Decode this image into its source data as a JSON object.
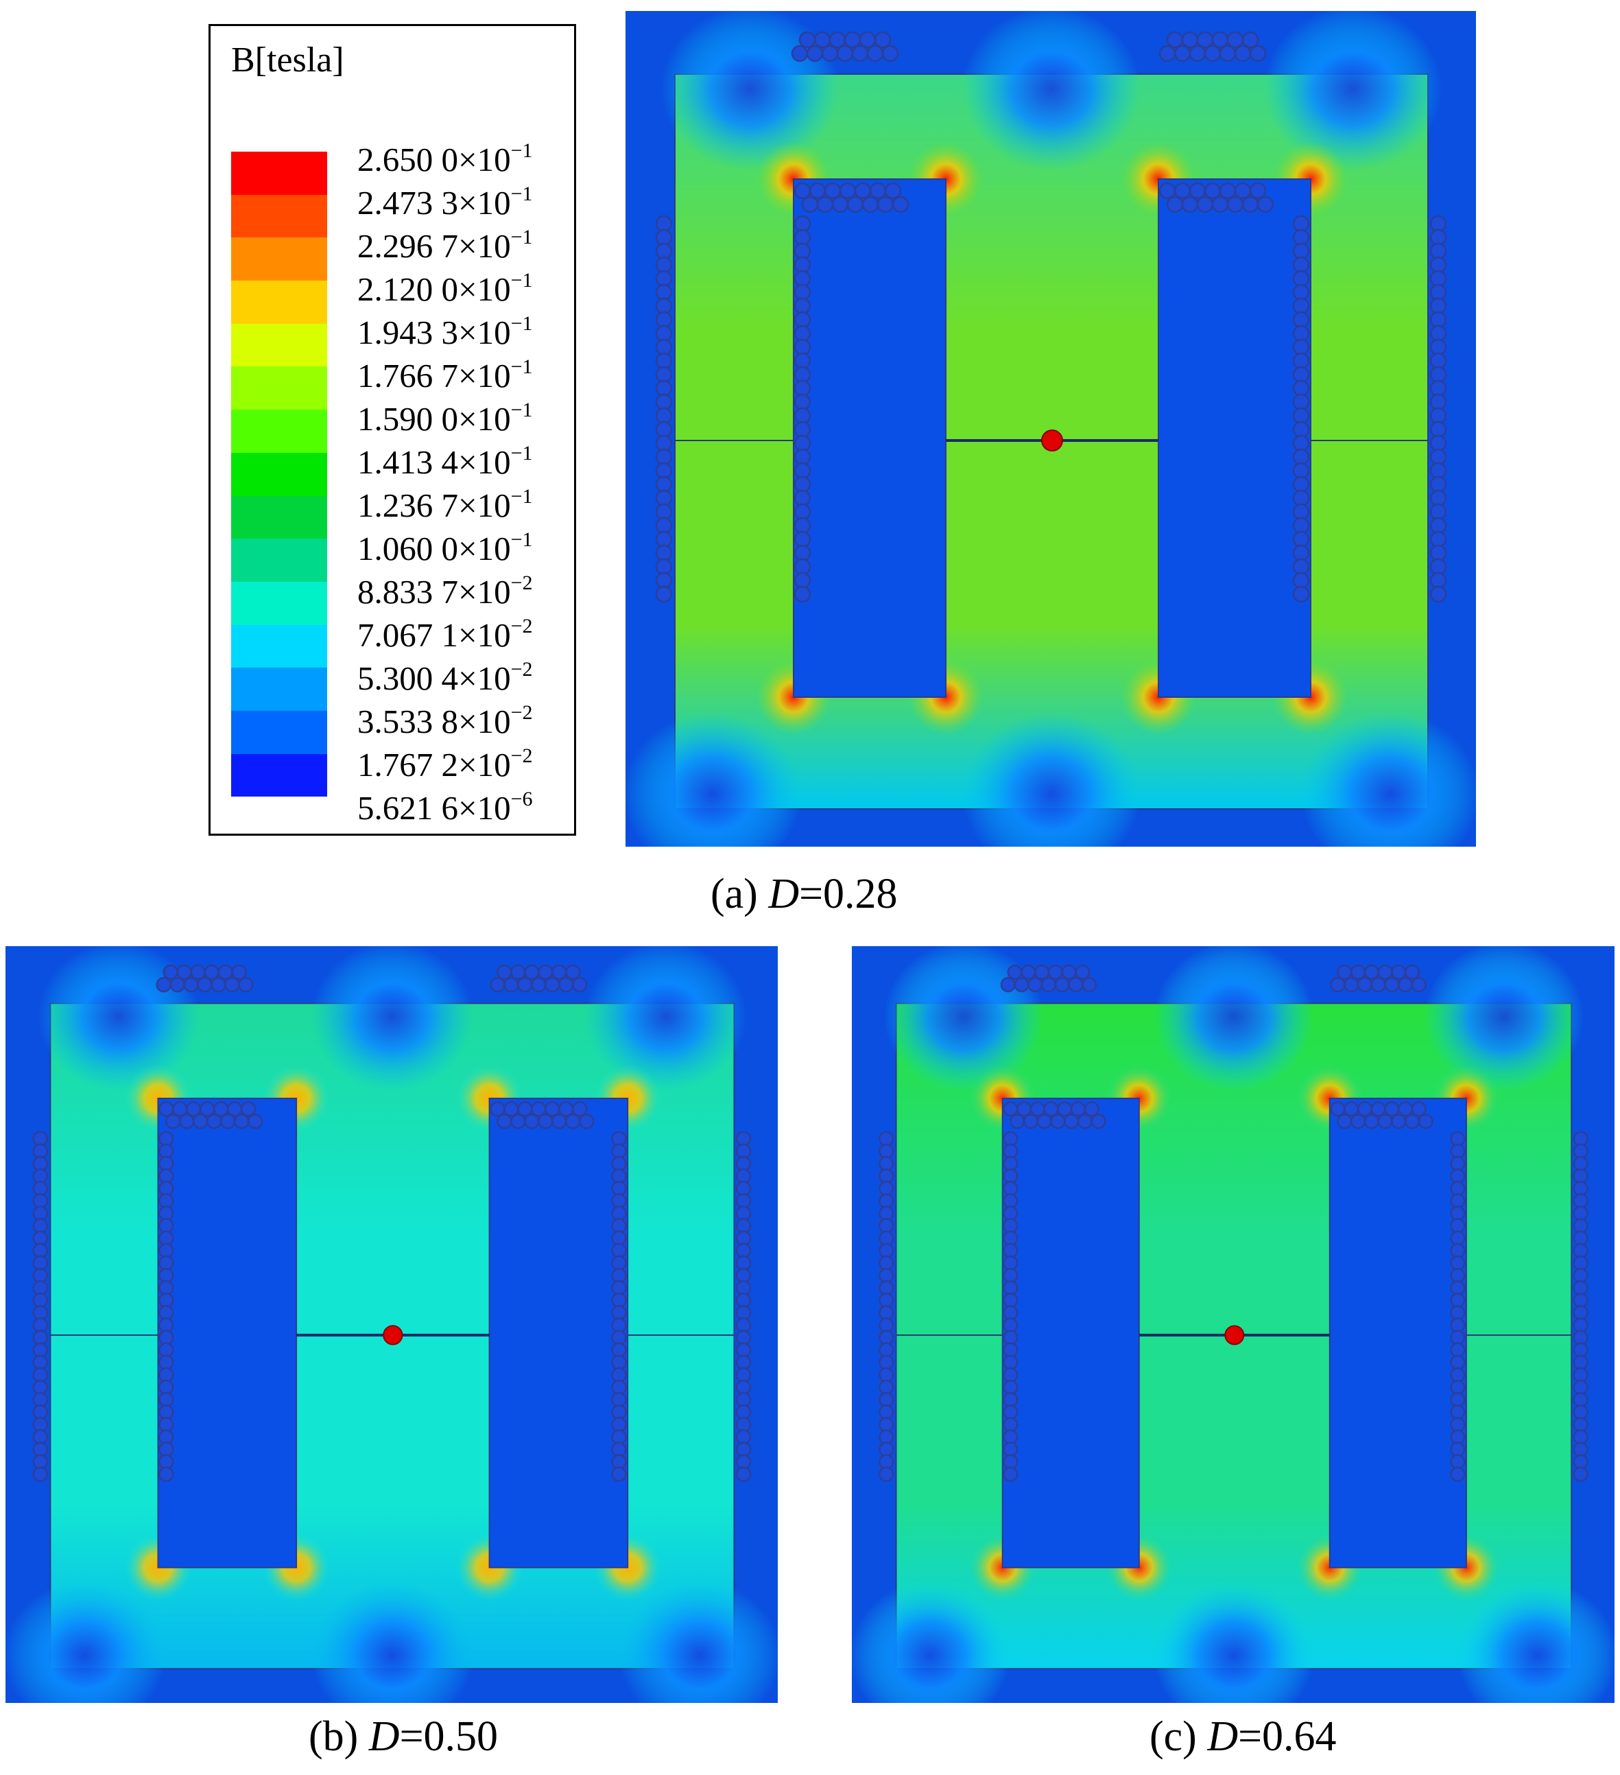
{
  "legend": {
    "title": "B[tesla]",
    "labels": [
      {
        "mantissa": "2.650 0×10",
        "exp": "−1"
      },
      {
        "mantissa": "2.473 3×10",
        "exp": "−1"
      },
      {
        "mantissa": "2.296 7×10",
        "exp": "−1"
      },
      {
        "mantissa": "2.120 0×10",
        "exp": "−1"
      },
      {
        "mantissa": "1.943 3×10",
        "exp": "−1"
      },
      {
        "mantissa": "1.766 7×10",
        "exp": "−1"
      },
      {
        "mantissa": "1.590 0×10",
        "exp": "−1"
      },
      {
        "mantissa": "1.413 4×10",
        "exp": "−1"
      },
      {
        "mantissa": "1.236 7×10",
        "exp": "−1"
      },
      {
        "mantissa": "1.060 0×10",
        "exp": "−1"
      },
      {
        "mantissa": "8.833 7×10",
        "exp": "−2"
      },
      {
        "mantissa": "7.067 1×10",
        "exp": "−2"
      },
      {
        "mantissa": "5.300 4×10",
        "exp": "−2"
      },
      {
        "mantissa": "3.533 8×10",
        "exp": "−2"
      },
      {
        "mantissa": "1.767 2×10",
        "exp": "−2"
      },
      {
        "mantissa": "5.621 6×10",
        "exp": "−6"
      }
    ],
    "colors": [
      "#ff0000",
      "#ff4a00",
      "#ff8c00",
      "#ffd000",
      "#d8ff00",
      "#96ff00",
      "#52ff00",
      "#00e600",
      "#00d43a",
      "#00d989",
      "#00f0c8",
      "#00d9ff",
      "#009cff",
      "#0068ff",
      "#0a1cff",
      "#1414e6"
    ]
  },
  "panels": [
    {
      "caption_prefix": "(a) ",
      "caption_var": "D",
      "caption_value": "=0.28",
      "field_color": "#6fe02a",
      "top_color": "#3bd88a",
      "bottom_color": "#00c8f0",
      "hot_color": "#ff1a00"
    },
    {
      "caption_prefix": "(b) ",
      "caption_var": "D",
      "caption_value": "=0.50",
      "field_color": "#12e6d2",
      "top_color": "#1fd99a",
      "bottom_color": "#06b8f0",
      "hot_color": "#ffb000"
    },
    {
      "caption_prefix": "(c) ",
      "caption_var": "D",
      "caption_value": "=0.64",
      "field_color": "#1fde90",
      "top_color": "#28e03c",
      "bottom_color": "#08d2f0",
      "hot_color": "#ff2a00"
    }
  ],
  "colors": {
    "steel": "#0a4fe0",
    "window": "#0b50e6",
    "coil": "#2b3f9a",
    "coil_fill": "#1c4cd8"
  }
}
